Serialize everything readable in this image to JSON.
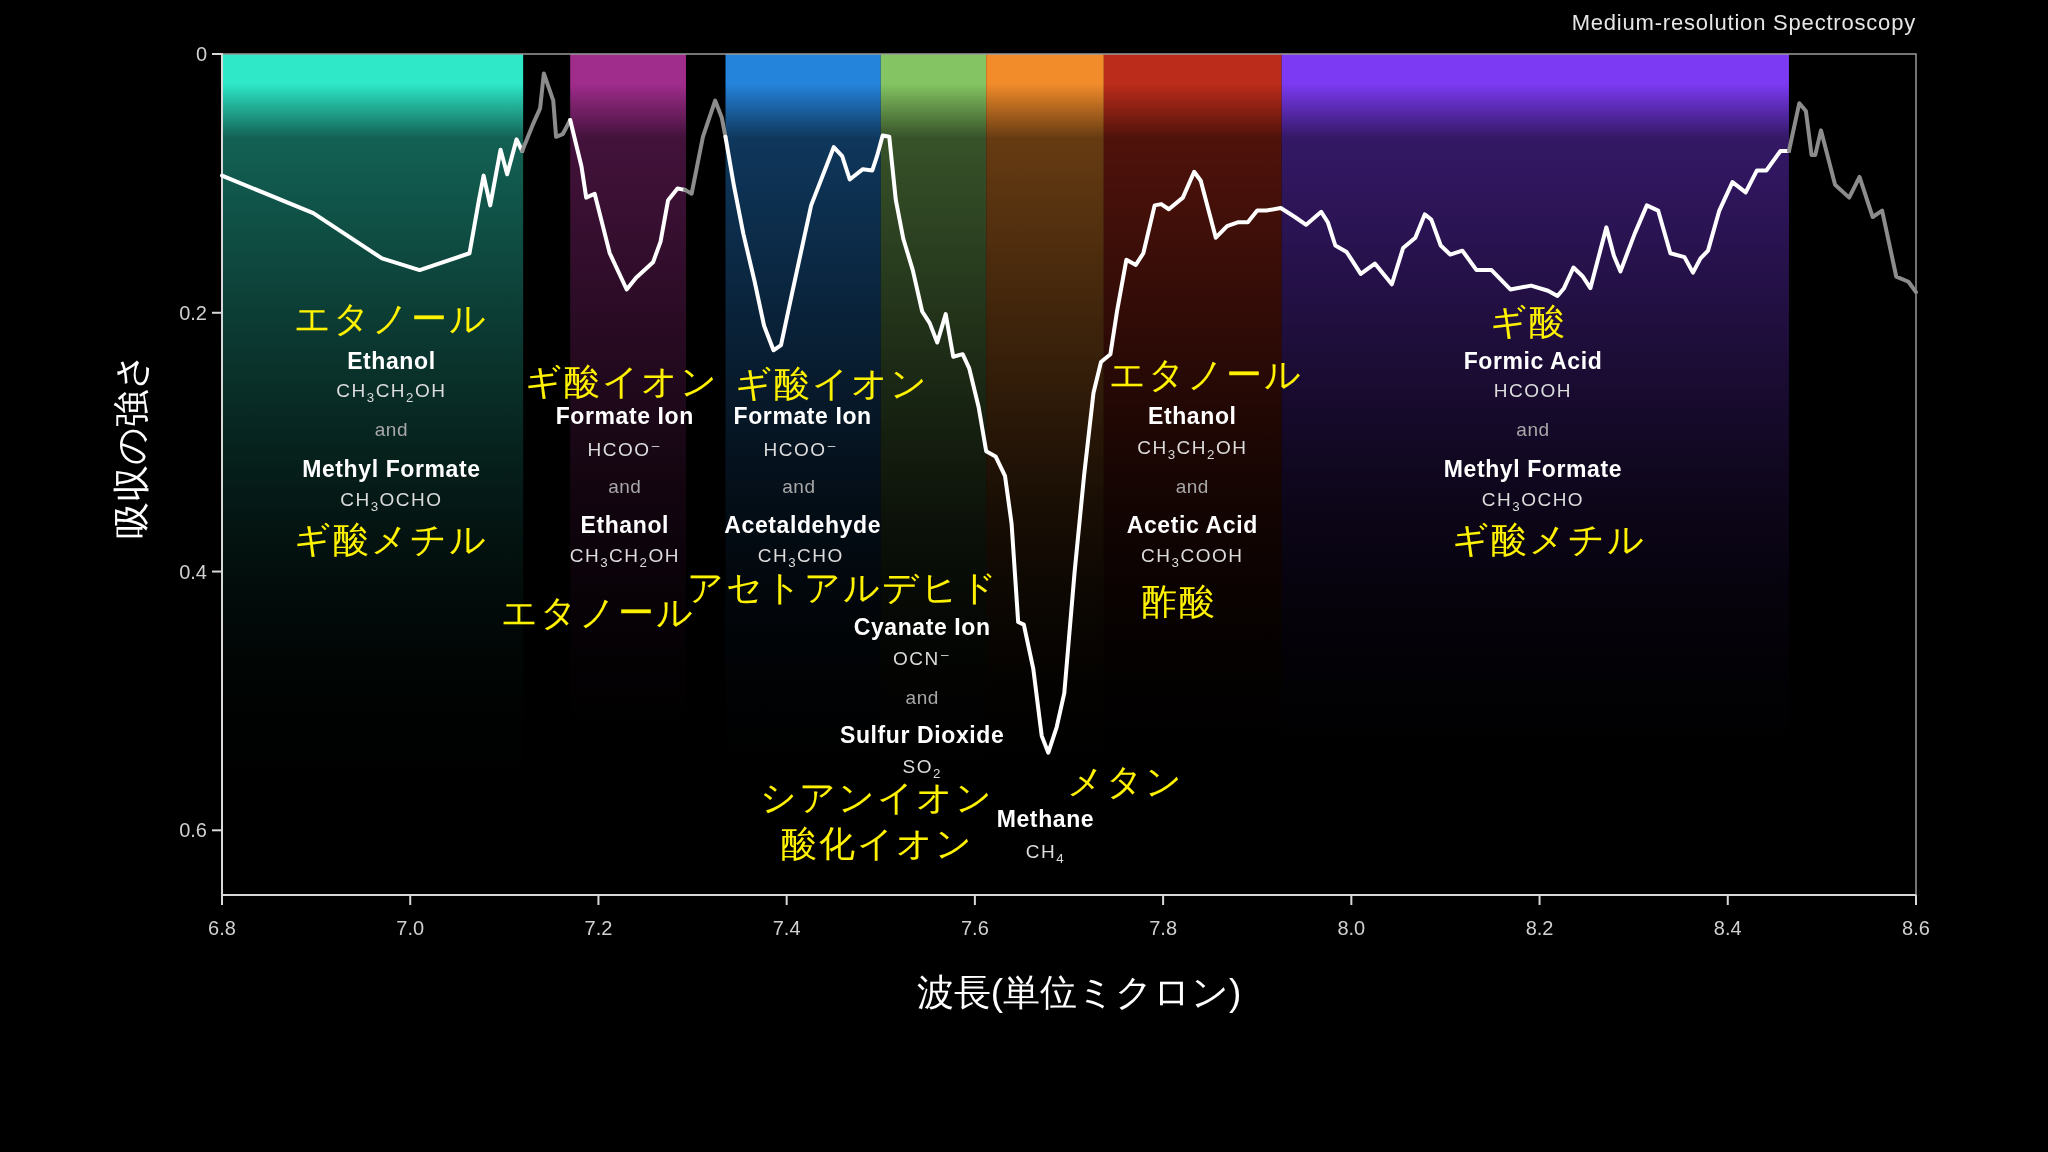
{
  "chart_data": {
    "type": "line",
    "title": "Medium-resolution Spectroscopy",
    "xlabel": "波長(単位ミクロン)",
    "ylabel": "吸収の強さ",
    "xlim": [
      6.8,
      8.6
    ],
    "ylim": [
      0.65,
      0
    ],
    "xticks": [
      6.8,
      {
        "value": 7.0,
        "label": "7.0"
      },
      7.2,
      7.4,
      7.6,
      7.8,
      {
        "value": 8.0,
        "label": "8.0"
      },
      8.2,
      8.4,
      8.6
    ],
    "yticks": [
      0,
      0.2,
      0.4,
      0.6
    ],
    "bands": [
      {
        "axis": "x",
        "from": 6.8,
        "to": 7.12,
        "color": "#2ee8c8"
      },
      {
        "axis": "x",
        "from": 7.17,
        "to": 7.293,
        "color": "#a02c8c"
      },
      {
        "axis": "x",
        "from": 7.335,
        "to": 7.5,
        "color": "#2484dc"
      },
      {
        "axis": "x",
        "from": 7.5,
        "to": 7.612,
        "color": "#84c462"
      },
      {
        "axis": "x",
        "from": 7.612,
        "to": 7.737,
        "color": "#f28c2a"
      },
      {
        "axis": "x",
        "from": 7.737,
        "to": 7.926,
        "color": "#bc2c1a"
      },
      {
        "axis": "x",
        "from": 7.926,
        "to": 8.465,
        "color": "#7c3af2"
      }
    ],
    "series": [
      {
        "color": "#ffffff",
        "x": [
          6.8,
          6.897,
          6.97,
          7.01,
          7.063,
          7.073,
          7.078,
          7.085,
          7.096,
          7.103,
          7.113,
          7.119
        ],
        "values": [
          0.094,
          0.123,
          0.158,
          0.167,
          0.154,
          0.113,
          0.094,
          0.117,
          0.074,
          0.093,
          0.066,
          0.075
        ]
      },
      {
        "color": "#8c8c8c",
        "x": [
          7.119,
          7.13,
          7.138,
          7.142,
          7.152,
          7.155,
          7.162,
          7.17
        ],
        "values": [
          0.075,
          0.055,
          0.042,
          0.015,
          0.036,
          0.064,
          0.062,
          0.051
        ]
      },
      {
        "color": "#ffffff",
        "x": [
          7.17,
          7.182,
          7.187,
          7.196,
          7.212,
          7.23,
          7.24,
          7.258,
          7.266,
          7.274,
          7.284,
          7.292
        ],
        "values": [
          0.051,
          0.087,
          0.111,
          0.108,
          0.154,
          0.182,
          0.173,
          0.161,
          0.145,
          0.113,
          0.104,
          0.105
        ]
      },
      {
        "color": "#8c8c8c",
        "x": [
          7.292,
          7.299,
          7.311,
          7.324,
          7.331,
          7.335
        ],
        "values": [
          0.105,
          0.108,
          0.064,
          0.036,
          0.049,
          0.064
        ]
      },
      {
        "color": "#ffffff",
        "x": [
          7.335,
          7.344,
          7.354,
          7.366,
          7.376,
          7.386,
          7.394,
          7.406,
          7.426,
          7.45,
          7.459,
          7.467,
          7.481,
          7.491,
          7.496,
          7.502,
          7.509,
          7.516,
          7.524,
          7.534,
          7.544,
          7.552,
          7.56,
          7.569,
          7.577,
          7.587,
          7.594,
          7.604,
          7.612,
          7.622,
          7.632,
          7.639,
          7.646,
          7.652,
          7.662,
          7.671,
          7.678,
          7.687,
          7.695,
          7.706,
          7.716,
          7.726,
          7.734,
          7.744,
          7.751,
          7.761,
          7.771,
          7.779,
          7.791,
          7.798,
          7.806,
          7.821,
          7.833,
          7.84,
          7.848,
          7.856,
          7.868,
          7.88,
          7.89,
          7.9,
          7.91,
          7.925,
          7.94,
          7.952,
          7.968,
          7.975,
          7.983,
          7.995,
          8.01,
          8.025,
          8.043,
          8.055,
          8.068,
          8.078,
          8.085,
          8.095,
          8.105,
          8.118,
          8.133,
          8.149,
          8.169,
          8.191,
          8.209,
          8.219,
          8.226,
          8.236,
          8.246,
          8.254,
          8.271,
          8.279,
          8.286,
          8.301,
          8.314,
          8.326,
          8.339,
          8.354,
          8.363,
          8.371,
          8.379,
          8.391,
          8.405,
          8.419,
          8.431,
          8.441,
          8.456,
          8.465
        ],
        "values": [
          0.064,
          0.102,
          0.139,
          0.176,
          0.21,
          0.229,
          0.225,
          0.184,
          0.117,
          0.072,
          0.079,
          0.097,
          0.089,
          0.09,
          0.079,
          0.063,
          0.064,
          0.113,
          0.143,
          0.167,
          0.199,
          0.208,
          0.223,
          0.201,
          0.234,
          0.232,
          0.243,
          0.273,
          0.307,
          0.311,
          0.326,
          0.363,
          0.439,
          0.441,
          0.475,
          0.527,
          0.54,
          0.52,
          0.494,
          0.4,
          0.326,
          0.262,
          0.238,
          0.232,
          0.199,
          0.159,
          0.163,
          0.154,
          0.117,
          0.116,
          0.12,
          0.111,
          0.091,
          0.098,
          0.12,
          0.142,
          0.133,
          0.13,
          0.13,
          0.121,
          0.121,
          0.119,
          0.126,
          0.132,
          0.122,
          0.13,
          0.148,
          0.153,
          0.17,
          0.162,
          0.178,
          0.15,
          0.142,
          0.124,
          0.128,
          0.148,
          0.155,
          0.152,
          0.167,
          0.167,
          0.182,
          0.179,
          0.183,
          0.187,
          0.181,
          0.165,
          0.172,
          0.181,
          0.134,
          0.156,
          0.168,
          0.139,
          0.117,
          0.121,
          0.154,
          0.157,
          0.169,
          0.158,
          0.152,
          0.121,
          0.099,
          0.107,
          0.09,
          0.09,
          0.075,
          0.075
        ]
      },
      {
        "color": "#8c8c8c",
        "x": [
          8.465,
          8.476,
          8.483,
          8.489,
          8.493,
          8.499,
          8.514,
          8.529,
          8.54,
          8.554,
          8.564,
          8.579,
          8.592,
          8.6
        ],
        "values": [
          0.075,
          0.038,
          0.044,
          0.078,
          0.078,
          0.059,
          0.101,
          0.111,
          0.095,
          0.126,
          0.121,
          0.172,
          0.176,
          0.184
        ]
      }
    ],
    "annotations": [
      "エタノール",
      "Ethanol",
      "CH$_{3}$CH$_{2}$OH",
      "and",
      "Methyl Formate",
      "CH$_{3}$OCHO",
      "ギ酸メチル",
      "ギ酸イオン",
      "Formate Ion",
      "HCOO⁻",
      "and",
      "Ethanol",
      "CH$_{3}$CH$_{2}$OH",
      "エタノール",
      "ギ酸イオン",
      "Formate Ion",
      "HCOO⁻",
      "and",
      "Acetaldehyde",
      "CH$_{3}$CHO",
      "アセトアルデヒド",
      "Cyanate Ion",
      "OCN⁻",
      "and",
      "Sulfur Dioxide",
      "SO$_{2}$",
      "シアンイオン",
      "酸化イオン",
      "メタン",
      "Methane",
      "CH$_{4}$",
      "エタノール",
      "Ethanol",
      "CH$_{3}$CH$_{2}$OH",
      "and",
      "Acetic Acid",
      "CH$_{3}$COOH",
      "酢酸",
      "ギ酸",
      "Formic Acid",
      "HCOOH",
      "and",
      "Methyl Formate",
      "CH$_{3}$OCHO",
      "ギ酸メチル"
    ]
  }
}
